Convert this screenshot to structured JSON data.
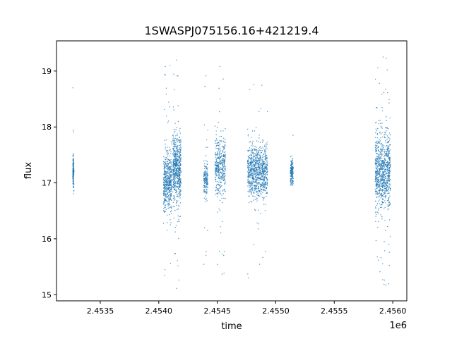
{
  "chart_data": {
    "type": "scatter",
    "title": "1SWASPJ075156.16+421219.4",
    "xlabel": "time",
    "ylabel": "flux",
    "x_offset_label": "1e6",
    "xlim": [
      2453126,
      2456120
    ],
    "ylim": [
      14.89,
      19.54
    ],
    "x_ticks": [
      2453500,
      2454000,
      2454500,
      2455000,
      2455500,
      2456000
    ],
    "x_tick_labels": [
      "2.4535",
      "2.4540",
      "2.4545",
      "2.4550",
      "2.4555",
      "2.4560"
    ],
    "y_ticks": [
      15,
      16,
      17,
      18,
      19
    ],
    "y_tick_labels": [
      "15",
      "16",
      "17",
      "18",
      "19"
    ],
    "grid": false,
    "marker_color": "#1f77b4",
    "clusters": [
      {
        "t_start": 2453265,
        "t_end": 2453275,
        "flux_center": 17.2,
        "flux_sd": 0.15,
        "n": 140,
        "outlier_fraction": 0.04,
        "flux_min": 16.0,
        "flux_max": 19.2
      },
      {
        "t_start": 2454040,
        "t_end": 2454110,
        "flux_center": 17.0,
        "flux_sd": 0.25,
        "n": 500,
        "outlier_fraction": 0.05,
        "flux_min": 15.2,
        "flux_max": 19.2
      },
      {
        "t_start": 2454120,
        "t_end": 2454190,
        "flux_center": 17.25,
        "flux_sd": 0.3,
        "n": 600,
        "outlier_fraction": 0.05,
        "flux_min": 15.1,
        "flux_max": 19.3
      },
      {
        "t_start": 2454385,
        "t_end": 2454420,
        "flux_center": 17.05,
        "flux_sd": 0.15,
        "n": 160,
        "outlier_fraction": 0.08,
        "flux_min": 15.2,
        "flux_max": 19.3
      },
      {
        "t_start": 2454480,
        "t_end": 2454570,
        "flux_center": 17.3,
        "flux_sd": 0.25,
        "n": 420,
        "outlier_fraction": 0.05,
        "flux_min": 15.3,
        "flux_max": 19.2
      },
      {
        "t_start": 2454760,
        "t_end": 2454930,
        "flux_center": 17.2,
        "flux_sd": 0.22,
        "n": 900,
        "outlier_fraction": 0.03,
        "flux_min": 15.1,
        "flux_max": 19.0
      },
      {
        "t_start": 2455125,
        "t_end": 2455150,
        "flux_center": 17.2,
        "flux_sd": 0.12,
        "n": 160,
        "outlier_fraction": 0.01,
        "flux_min": 16.7,
        "flux_max": 18.4
      },
      {
        "t_start": 2455850,
        "t_end": 2455980,
        "flux_center": 17.2,
        "flux_sd": 0.35,
        "n": 900,
        "outlier_fraction": 0.05,
        "flux_min": 15.1,
        "flux_max": 19.3
      }
    ]
  }
}
